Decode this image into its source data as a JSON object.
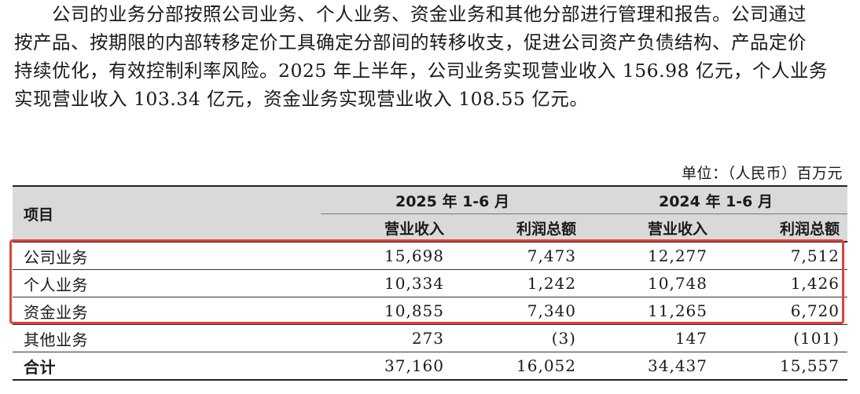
{
  "paragraph": {
    "lines": [
      "公司的业务分部按照公司业务、个人业务、资金业务和其他分部进行管理和报告。公司通过",
      "按产品、按期限的内部转移定价工具确定分部间的转移收支，促进公司资产负债结构、产品定价",
      "持续优化，有效控制利率风险。2025 年上半年，公司业务实现营业收入 156.98 亿元，个人业务",
      "实现营业收入 103.34 亿元，资金业务实现营业收入 108.55 亿元。"
    ]
  },
  "unit_label": "单位：（人民币）百万元",
  "table": {
    "item_header": "项目",
    "periods": [
      "2025 年 1-6 月",
      "2024 年 1-6 月"
    ],
    "sub_headers": [
      "营业收入",
      "利润总额",
      "营业收入",
      "利润总额"
    ],
    "rows": [
      {
        "name": "公司业务",
        "values": [
          "15,698",
          "7,473",
          "12,277",
          "7,512"
        ]
      },
      {
        "name": "个人业务",
        "values": [
          "10,334",
          "1,242",
          "10,748",
          "1,426"
        ]
      },
      {
        "name": "资金业务",
        "values": [
          "10,855",
          "7,340",
          "11,265",
          "6,720"
        ]
      },
      {
        "name": "其他业务",
        "values": [
          "273",
          "(3)",
          "147",
          "(101)"
        ]
      },
      {
        "name": "合计",
        "values": [
          "37,160",
          "16,052",
          "34,437",
          "15,557"
        ]
      }
    ]
  },
  "highlight_color": "#e0413b"
}
